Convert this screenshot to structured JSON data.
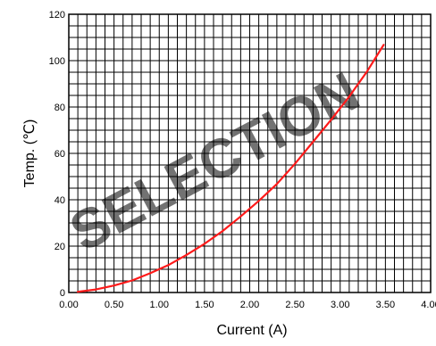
{
  "chart_data": {
    "type": "line",
    "title": "",
    "xlabel": "Current  (A)",
    "ylabel": "Temp.  (℃)",
    "xlim": [
      0.0,
      4.0
    ],
    "ylim": [
      0,
      120
    ],
    "x_ticks": [
      "0.00",
      "0.50",
      "1.00",
      "1.50",
      "2.00",
      "2.50",
      "3.00",
      "3.50",
      "4.00"
    ],
    "y_ticks": [
      "0",
      "20",
      "40",
      "60",
      "80",
      "100",
      "120"
    ],
    "grid": true,
    "legend": "none",
    "series": [
      {
        "color": "#ff1a1a",
        "x": [
          0.1,
          0.3,
          0.5,
          0.7,
          0.9,
          1.1,
          1.3,
          1.5,
          1.7,
          1.9,
          2.1,
          2.3,
          2.5,
          2.7,
          2.9,
          3.1,
          3.3,
          3.48
        ],
        "y": [
          0.3,
          1.3,
          3.0,
          5.2,
          8.3,
          11.8,
          16.2,
          21.0,
          26.5,
          32.8,
          39.5,
          46.8,
          55.5,
          65.0,
          74.5,
          84.5,
          95.5,
          106.8
        ]
      }
    ]
  },
  "watermark": {
    "text": "SELECTION",
    "color": "#d9d9d9"
  }
}
